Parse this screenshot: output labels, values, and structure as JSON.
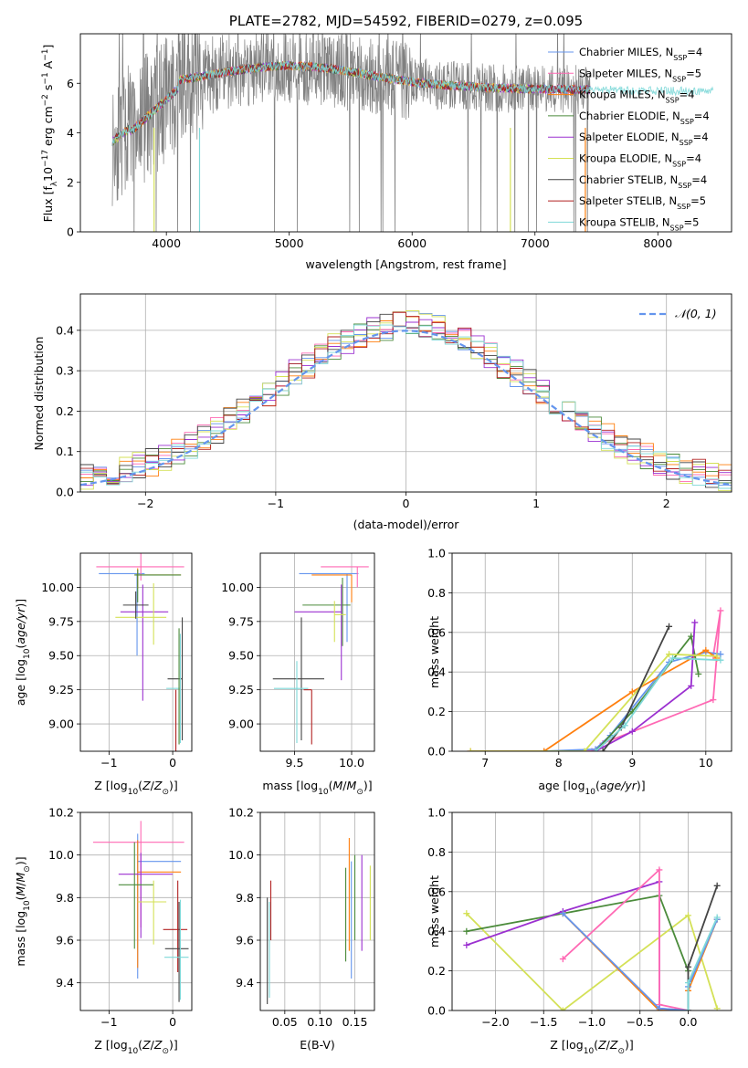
{
  "chart_data": [
    {
      "id": "spectrum",
      "type": "line",
      "title": "PLATE=2782, MJD=54592, FIBERID=0279, z=0.095",
      "xlabel": "wavelength [Angstrom, rest frame]",
      "ylabel": "Flux [f_λ 10^-17 erg cm^-2 s^-1 A^-1]",
      "xlim": [
        3300,
        8600
      ],
      "ylim": [
        0,
        8
      ],
      "xticks": [
        4000,
        5000,
        6000,
        7000,
        8000
      ],
      "yticks": [
        0,
        2,
        4,
        6
      ],
      "grid": false,
      "legend_position": "right",
      "legend": [
        {
          "label": "Chabrier MILES, N",
          "sub": "SSP",
          "tail": "=4",
          "color": "#6495ed"
        },
        {
          "label": "Salpeter MILES, N",
          "sub": "SSP",
          "tail": "=5",
          "color": "#ff69b4"
        },
        {
          "label": "Kroupa MILES, N",
          "sub": "SSP",
          "tail": "=4",
          "color": "#ff7f0e"
        },
        {
          "label": "Chabrier ELODIE, N",
          "sub": "SSP",
          "tail": "=4",
          "color": "#4b8b3b"
        },
        {
          "label": "Salpeter ELODIE, N",
          "sub": "SSP",
          "tail": "=4",
          "color": "#9b30d0"
        },
        {
          "label": "Kroupa ELODIE, N",
          "sub": "SSP",
          "tail": "=4",
          "color": "#d4e157"
        },
        {
          "label": "Chabrier STELIB, N",
          "sub": "SSP",
          "tail": "=4",
          "color": "#444444"
        },
        {
          "label": "Salpeter STELIB, N",
          "sub": "SSP",
          "tail": "=5",
          "color": "#b22222"
        },
        {
          "label": "Kroupa STELIB, N",
          "sub": "SSP",
          "tail": "=5",
          "color": "#7fd8d8"
        }
      ],
      "data_color": "#808080",
      "model_color": "#78d8d8"
    },
    {
      "id": "residuals",
      "type": "line",
      "xlabel": "(data-model)/error",
      "ylabel": "Normed distribution",
      "xlim": [
        -2.5,
        2.5
      ],
      "ylim": [
        0,
        0.49
      ],
      "xticks": [
        -2,
        -1,
        0,
        1,
        2
      ],
      "yticks": [
        0.0,
        0.1,
        0.2,
        0.3,
        0.4
      ],
      "grid": true,
      "legend_position": "top-right",
      "legend_label": "N(0, 1)",
      "normal_curve": {
        "mean": 0,
        "sigma": 1,
        "color": "#6495ed",
        "style": "dashed"
      },
      "histogram_bin_width": 0.1
    },
    {
      "id": "age_vs_z",
      "type": "scatter",
      "xlabel": "Z [log10(Z/Z⊙)]",
      "ylabel": "age  [log10(age/yr)]",
      "xlim": [
        -1.45,
        0.3
      ],
      "ylim": [
        8.8,
        10.25
      ],
      "xticks": [
        -1,
        0
      ],
      "yticks": [
        9.0,
        9.25,
        9.5,
        9.75,
        10.0
      ],
      "points": [
        {
          "color": "#6495ed",
          "x": -0.56,
          "y": 10.1,
          "xerr": [
            0.6,
            0.12
          ],
          "yerr": [
            0.6,
            0.0
          ]
        },
        {
          "color": "#ff69b4",
          "x": -0.5,
          "y": 10.15,
          "xerr": [
            0.7,
            0.68
          ],
          "yerr": [
            0.1,
            0.1
          ]
        },
        {
          "color": "#ff7f0e",
          "x": -0.55,
          "y": 10.09,
          "xerr": [
            0.05,
            0.68
          ],
          "yerr": [
            0.1,
            0.05
          ]
        },
        {
          "color": "#4b8b3b",
          "x": -0.55,
          "y": 10.09,
          "xerr": [
            0.05,
            0.68
          ],
          "yerr": [
            0.2,
            0.04
          ]
        },
        {
          "color": "#9b30d0",
          "x": -0.47,
          "y": 9.82,
          "xerr": [
            0.35,
            0.4
          ],
          "yerr": [
            0.65,
            0.2
          ]
        },
        {
          "color": "#d4e157",
          "x": -0.3,
          "y": 9.78,
          "xerr": [
            0.6,
            0.2
          ],
          "yerr": [
            0.2,
            0.25
          ]
        },
        {
          "color": "#444444",
          "x": -0.58,
          "y": 9.87,
          "xerr": [
            0.2,
            0.2
          ],
          "yerr": [
            0.1,
            0.1
          ]
        },
        {
          "color": "#b22222",
          "x": 0.05,
          "y": 9.25,
          "xerr": [
            0.0,
            0.0
          ],
          "yerr": [
            0.45,
            0.0
          ]
        },
        {
          "color": "#444444",
          "x": 0.15,
          "y": 9.33,
          "xerr": [
            0.23,
            0.0
          ],
          "yerr": [
            0.45,
            0.45
          ]
        },
        {
          "color": "#7fd8d8",
          "x": 0.12,
          "y": 9.26,
          "xerr": [
            0.22,
            0.0
          ],
          "yerr": [
            0.4,
            0.4
          ]
        },
        {
          "color": "#4b8b3b",
          "x": 0.1,
          "y": 9.3,
          "xerr": [
            0.0,
            0.0
          ],
          "yerr": [
            0.45,
            0.4
          ]
        }
      ]
    },
    {
      "id": "age_vs_mass",
      "type": "scatter",
      "xlabel": "mass [log10(M/M⊙)]",
      "xlim": [
        9.2,
        10.2
      ],
      "ylim": [
        8.8,
        10.25
      ],
      "xticks": [
        9.5,
        10.0
      ],
      "yticks": [
        9.0,
        9.25,
        9.5,
        9.75,
        10.0
      ],
      "points": [
        {
          "color": "#6495ed",
          "x": 9.96,
          "y": 10.1,
          "xerr": [
            0.42,
            0.1
          ],
          "yerr": [
            0.5,
            0.0
          ]
        },
        {
          "color": "#ff69b4",
          "x": 10.05,
          "y": 10.15,
          "xerr": [
            0.32,
            0.1
          ],
          "yerr": [
            0.15,
            0.0
          ]
        },
        {
          "color": "#ff7f0e",
          "x": 10.0,
          "y": 10.09,
          "xerr": [
            0.35,
            0.0
          ],
          "yerr": [
            0.2,
            0.0
          ]
        },
        {
          "color": "#4b8b3b",
          "x": 9.92,
          "y": 9.87,
          "xerr": [
            0.35,
            0.07
          ],
          "yerr": [
            0.3,
            0.2
          ]
        },
        {
          "color": "#9b30d0",
          "x": 9.91,
          "y": 9.82,
          "xerr": [
            0.41,
            0.0
          ],
          "yerr": [
            0.5,
            0.2
          ]
        },
        {
          "color": "#d4e157",
          "x": 9.85,
          "y": 9.8,
          "xerr": [
            0.0,
            0.1
          ],
          "yerr": [
            0.2,
            0.1
          ]
        },
        {
          "color": "#444444",
          "x": 9.56,
          "y": 9.33,
          "xerr": [
            0.25,
            0.2
          ],
          "yerr": [
            0.45,
            0.45
          ]
        },
        {
          "color": "#b22222",
          "x": 9.65,
          "y": 9.25,
          "xerr": [
            0.07,
            0.0
          ],
          "yerr": [
            0.4,
            0.0
          ]
        },
        {
          "color": "#7fd8d8",
          "x": 9.52,
          "y": 9.26,
          "xerr": [
            0.2,
            0.1
          ],
          "yerr": [
            0.4,
            0.2
          ]
        }
      ]
    },
    {
      "id": "weight_vs_age",
      "type": "line",
      "xlabel": "age  [log10(age/yr)]",
      "ylabel": "mass weight",
      "xlim": [
        6.55,
        10.35
      ],
      "ylim": [
        0,
        1.0
      ],
      "xticks": [
        7,
        8,
        9,
        10
      ],
      "yticks": [
        0.0,
        0.2,
        0.4,
        0.6,
        0.8,
        1.0
      ],
      "series": [
        {
          "color": "#ff69b4",
          "points": [
            [
              6.8,
              0.0
            ],
            [
              8.45,
              0.0
            ],
            [
              8.6,
              0.04
            ],
            [
              10.1,
              0.26
            ],
            [
              10.2,
              0.71
            ],
            [
              10.1,
              0.48
            ]
          ]
        },
        {
          "color": "#6495ed",
          "points": [
            [
              7.8,
              0.0
            ],
            [
              8.5,
              0.01
            ],
            [
              8.7,
              0.08
            ],
            [
              9.5,
              0.45
            ],
            [
              10.0,
              0.5
            ],
            [
              10.2,
              0.49
            ]
          ]
        },
        {
          "color": "#ff7f0e",
          "points": [
            [
              6.8,
              0.0
            ],
            [
              7.8,
              0.0
            ],
            [
              9.0,
              0.3
            ],
            [
              10.0,
              0.51
            ],
            [
              10.15,
              0.47
            ]
          ]
        },
        {
          "color": "#4b8b3b",
          "points": [
            [
              8.5,
              0.0
            ],
            [
              9.0,
              0.2
            ],
            [
              9.8,
              0.58
            ],
            [
              9.9,
              0.39
            ]
          ]
        },
        {
          "color": "#9b30d0",
          "points": [
            [
              8.5,
              0.0
            ],
            [
              9.0,
              0.1
            ],
            [
              9.8,
              0.33
            ],
            [
              9.85,
              0.65
            ]
          ]
        },
        {
          "color": "#d4e157",
          "points": [
            [
              6.8,
              0.0
            ],
            [
              8.35,
              0.0
            ],
            [
              9.5,
              0.49
            ],
            [
              10.15,
              0.48
            ]
          ]
        },
        {
          "color": "#444444",
          "points": [
            [
              8.6,
              0.0
            ],
            [
              8.85,
              0.12
            ],
            [
              9.5,
              0.63
            ]
          ]
        },
        {
          "color": "#7fd8d8",
          "points": [
            [
              8.5,
              0.0
            ],
            [
              8.9,
              0.13
            ],
            [
              9.55,
              0.47
            ],
            [
              10.2,
              0.46
            ]
          ]
        }
      ]
    },
    {
      "id": "mass_vs_z",
      "type": "scatter",
      "xlabel": "Z [log10(Z/Z⊙)]",
      "ylabel": "mass [log10(M/M⊙)]",
      "xlim": [
        -1.45,
        0.3
      ],
      "ylim": [
        9.27,
        10.2
      ],
      "xticks": [
        -1,
        0
      ],
      "yticks": [
        9.4,
        9.6,
        9.8,
        10.0,
        10.2
      ],
      "points": [
        {
          "color": "#ff69b4",
          "x": -0.5,
          "y": 10.06,
          "xerr": [
            0.75,
            0.68
          ],
          "yerr": [
            0.4,
            0.1
          ]
        },
        {
          "color": "#6495ed",
          "x": -0.55,
          "y": 9.97,
          "xerr": [
            0.0,
            0.68
          ],
          "yerr": [
            0.55,
            0.13
          ]
        },
        {
          "color": "#ff7f0e",
          "x": -0.55,
          "y": 9.92,
          "xerr": [
            0.0,
            0.68
          ],
          "yerr": [
            0.45,
            0.15
          ]
        },
        {
          "color": "#9b30d0",
          "x": -0.5,
          "y": 9.91,
          "xerr": [
            0.35,
            0.5
          ],
          "yerr": [
            0.3,
            0.1
          ]
        },
        {
          "color": "#4b8b3b",
          "x": -0.6,
          "y": 9.86,
          "xerr": [
            0.25,
            0.3
          ],
          "yerr": [
            0.3,
            0.2
          ]
        },
        {
          "color": "#d4e157",
          "x": -0.3,
          "y": 9.78,
          "xerr": [
            0.25,
            0.2
          ],
          "yerr": [
            0.2,
            0.1
          ]
        },
        {
          "color": "#b22222",
          "x": 0.08,
          "y": 9.65,
          "xerr": [
            0.23,
            0.15
          ],
          "yerr": [
            0.2,
            0.23
          ]
        },
        {
          "color": "#444444",
          "x": 0.1,
          "y": 9.56,
          "xerr": [
            0.22,
            0.15
          ],
          "yerr": [
            0.25,
            0.22
          ]
        },
        {
          "color": "#7fd8d8",
          "x": 0.12,
          "y": 9.52,
          "xerr": [
            0.25,
            0.13
          ],
          "yerr": [
            0.2,
            0.27
          ]
        }
      ]
    },
    {
      "id": "mass_vs_ebv",
      "type": "scatter",
      "xlabel": "E(B-V)",
      "xlim": [
        0.015,
        0.178
      ],
      "ylim": [
        9.27,
        10.2
      ],
      "xticks": [
        0.05,
        0.1,
        0.15
      ],
      "yticks": [
        9.4,
        9.6,
        9.8,
        10.0,
        10.2
      ],
      "vlines": [
        {
          "color": "#444444",
          "x": 0.025,
          "y0": 9.3,
          "y1": 9.8
        },
        {
          "color": "#b22222",
          "x": 0.03,
          "y0": 9.6,
          "y1": 9.88
        },
        {
          "color": "#7fd8d8",
          "x": 0.028,
          "y0": 9.33,
          "y1": 9.78
        },
        {
          "color": "#4b8b3b",
          "x": 0.137,
          "y0": 9.5,
          "y1": 9.94
        },
        {
          "color": "#ff7f0e",
          "x": 0.142,
          "y0": 9.55,
          "y1": 10.08
        },
        {
          "color": "#6495ed",
          "x": 0.145,
          "y0": 9.42,
          "y1": 9.97
        },
        {
          "color": "#4b8b3b",
          "x": 0.15,
          "y0": 9.6,
          "y1": 10.0
        },
        {
          "color": "#9b30d0",
          "x": 0.16,
          "y0": 9.55,
          "y1": 10.0
        },
        {
          "color": "#d4e157",
          "x": 0.172,
          "y0": 9.6,
          "y1": 9.95
        }
      ]
    },
    {
      "id": "weight_vs_z",
      "type": "line",
      "xlabel": "Z [log10(Z/Z⊙)]",
      "ylabel": "mass weight",
      "xlim": [
        -2.45,
        0.45
      ],
      "ylim": [
        0,
        1.0
      ],
      "xticks": [
        -2.0,
        -1.5,
        -1.0,
        -0.5,
        0.0
      ],
      "yticks": [
        0.0,
        0.2,
        0.4,
        0.6,
        0.8,
        1.0
      ],
      "series": [
        {
          "color": "#d4e157",
          "points": [
            [
              -2.3,
              0.49
            ],
            [
              -1.3,
              0.0
            ],
            [
              0.0,
              0.48
            ],
            [
              0.3,
              0.01
            ]
          ]
        },
        {
          "color": "#4b8b3b",
          "points": [
            [
              -2.3,
              0.4
            ],
            [
              -1.3,
              0.49
            ],
            [
              -0.3,
              0.58
            ],
            [
              0.0,
              0.2
            ]
          ]
        },
        {
          "color": "#9b30d0",
          "points": [
            [
              -2.3,
              0.33
            ],
            [
              -1.3,
              0.5
            ],
            [
              -0.3,
              0.65
            ],
            [
              -0.3,
              0.01
            ],
            [
              0.0,
              0.0
            ]
          ]
        },
        {
          "color": "#ff69b4",
          "points": [
            [
              -1.3,
              0.26
            ],
            [
              -0.3,
              0.71
            ],
            [
              -0.3,
              0.03
            ],
            [
              0.0,
              0.0
            ]
          ]
        },
        {
          "color": "#ff7f0e",
          "points": [
            [
              -1.3,
              0.49
            ],
            [
              -0.3,
              0.0
            ],
            [
              0.0,
              0.0
            ],
            [
              0.0,
              0.1
            ],
            [
              0.3,
              0.46
            ]
          ]
        },
        {
          "color": "#6495ed",
          "points": [
            [
              -1.3,
              0.49
            ],
            [
              -0.3,
              0.01
            ],
            [
              0.0,
              0.0
            ],
            [
              0.0,
              0.12
            ],
            [
              0.3,
              0.46
            ]
          ]
        },
        {
          "color": "#444444",
          "points": [
            [
              0.0,
              0.0
            ],
            [
              0.0,
              0.22
            ],
            [
              0.3,
              0.63
            ]
          ]
        },
        {
          "color": "#7fd8d8",
          "points": [
            [
              0.0,
              0.0
            ],
            [
              0.0,
              0.14
            ],
            [
              0.3,
              0.47
            ]
          ]
        }
      ]
    }
  ]
}
